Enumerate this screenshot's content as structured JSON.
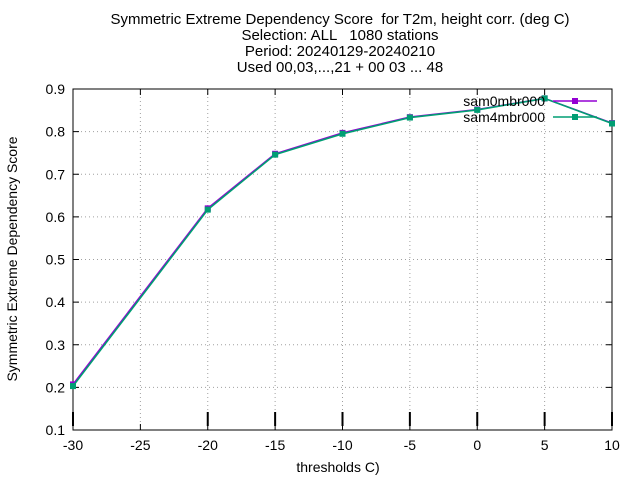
{
  "chart_data": {
    "type": "line",
    "title": [
      "Symmetric Extreme Dependency Score  for T2m, height corr. (deg C)",
      "Selection: ALL   1080 stations",
      "Period: 20240129-20240210",
      "Used 00,03,...,21 + 00 03 ... 48"
    ],
    "xlabel": "thresholds C)",
    "ylabel": "Symmetric Extreme Dependency Score",
    "xlim": [
      -30,
      10
    ],
    "ylim": [
      0.1,
      0.9
    ],
    "xticks": [
      -30,
      -25,
      -20,
      -15,
      -10,
      -5,
      0,
      5,
      10
    ],
    "yticks": [
      0.1,
      0.2,
      0.3,
      0.4,
      0.5,
      0.6,
      0.7,
      0.8,
      0.9
    ],
    "grid": true,
    "legend_position": "top-right",
    "x": [
      -30,
      -20,
      -15,
      -10,
      -5,
      0,
      5,
      10
    ],
    "series": [
      {
        "name": "sam0mbr000",
        "color": "#9400d3",
        "marker": "square",
        "values": [
          0.207,
          0.62,
          0.748,
          0.797,
          0.834,
          0.852,
          0.878,
          0.82
        ]
      },
      {
        "name": "sam4mbr000",
        "color": "#009e73",
        "marker": "square",
        "values": [
          0.203,
          0.617,
          0.746,
          0.795,
          0.833,
          0.851,
          0.878,
          0.819
        ]
      }
    ],
    "sample_marker_x": [
      -30,
      -20,
      -15,
      -10,
      -5,
      0,
      5,
      10
    ]
  }
}
